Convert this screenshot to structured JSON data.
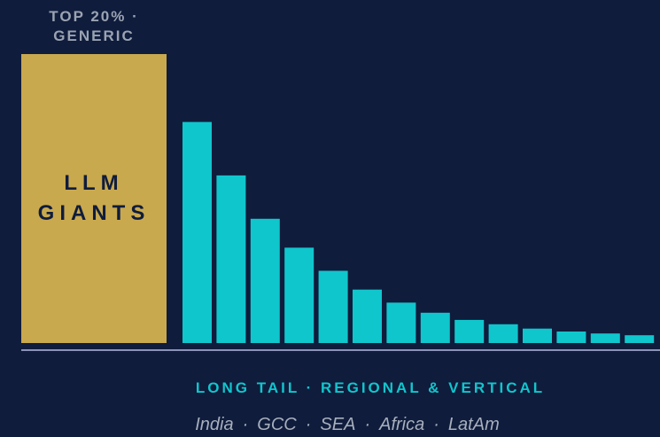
{
  "header": {
    "line1": "TOP 20% ·",
    "line2": "GENERIC"
  },
  "giants": {
    "line1": "LLM",
    "line2": "GIANTS"
  },
  "tail_label": "LONG TAIL · REGIONAL & VERTICAL",
  "regions": [
    "India",
    "GCC",
    "SEA",
    "Africa",
    "LatAm"
  ],
  "region_separator": "·",
  "colors": {
    "background": "#0f1c3c",
    "giant": "#c9a94e",
    "tail": "#10c6cd",
    "axis": "#8c93b8",
    "header_text": "#9ba3b2"
  },
  "chart_data": {
    "type": "bar",
    "title": "",
    "xlabel": "",
    "ylabel": "",
    "ylim": [
      0,
      100
    ],
    "grid": false,
    "head": {
      "label": "LLM GIANTS",
      "value": 100
    },
    "series": [
      {
        "values": [
          76.5,
          58,
          43,
          33,
          25,
          18.5,
          14,
          10.5,
          8,
          6.5,
          5,
          4,
          3.3,
          2.7
        ]
      }
    ]
  }
}
